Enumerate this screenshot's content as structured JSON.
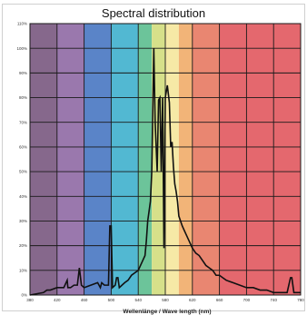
{
  "chart_data": {
    "type": "line",
    "title": "Spectral distribution",
    "xlabel": "Wellenlänge / Wave length (nm)",
    "ylabel": "",
    "xlim": [
      380,
      780
    ],
    "ylim": [
      0,
      110
    ],
    "x_ticks": [
      "380",
      "420",
      "460",
      "500",
      "540",
      "580",
      "620",
      "660",
      "700",
      "740",
      "780"
    ],
    "y_ticks": [
      "0%",
      "10%",
      "20%",
      "30%",
      "40%",
      "50%",
      "60%",
      "70%",
      "80%",
      "90%",
      "100%",
      "110%"
    ],
    "grid": true,
    "background_bands": [
      {
        "from": 380,
        "to": 420,
        "color": "#86688c"
      },
      {
        "from": 420,
        "to": 460,
        "color": "#9a78ad"
      },
      {
        "from": 460,
        "to": 500,
        "color": "#5a84c8"
      },
      {
        "from": 500,
        "to": 540,
        "color": "#52b8d2"
      },
      {
        "from": 540,
        "to": 560,
        "color": "#6cc49a"
      },
      {
        "from": 560,
        "to": 580,
        "color": "#d6e08a"
      },
      {
        "from": 580,
        "to": 600,
        "color": "#f6e9a6"
      },
      {
        "from": 600,
        "to": 620,
        "color": "#f2b478"
      },
      {
        "from": 620,
        "to": 660,
        "color": "#e98671"
      },
      {
        "from": 660,
        "to": 780,
        "color": "#e4686e"
      }
    ],
    "series": [
      {
        "color": "#111111",
        "points": [
          [
            380,
            0
          ],
          [
            390,
            0.5
          ],
          [
            400,
            1
          ],
          [
            405,
            2
          ],
          [
            410,
            2
          ],
          [
            420,
            3
          ],
          [
            430,
            3
          ],
          [
            435,
            6
          ],
          [
            436,
            3
          ],
          [
            440,
            3
          ],
          [
            445,
            4
          ],
          [
            450,
            4
          ],
          [
            453,
            11
          ],
          [
            456,
            4
          ],
          [
            460,
            3
          ],
          [
            470,
            4
          ],
          [
            480,
            5
          ],
          [
            484,
            3
          ],
          [
            486,
            5
          ],
          [
            490,
            4
          ],
          [
            496,
            4
          ],
          [
            498,
            28
          ],
          [
            500,
            28
          ],
          [
            502,
            3
          ],
          [
            506,
            4
          ],
          [
            508,
            7
          ],
          [
            510,
            7
          ],
          [
            512,
            3
          ],
          [
            516,
            4
          ],
          [
            520,
            5
          ],
          [
            525,
            6
          ],
          [
            530,
            8
          ],
          [
            535,
            9
          ],
          [
            540,
            10
          ],
          [
            545,
            13
          ],
          [
            550,
            16
          ],
          [
            552,
            22
          ],
          [
            554,
            30
          ],
          [
            556,
            34
          ],
          [
            558,
            38
          ],
          [
            560,
            50
          ],
          [
            563,
            100
          ],
          [
            565,
            70
          ],
          [
            568,
            50
          ],
          [
            570,
            79
          ],
          [
            572,
            80
          ],
          [
            574,
            50
          ],
          [
            576,
            80
          ],
          [
            578,
            19
          ],
          [
            580,
            80
          ],
          [
            583,
            85
          ],
          [
            586,
            78
          ],
          [
            588,
            60
          ],
          [
            590,
            62
          ],
          [
            592,
            52
          ],
          [
            594,
            45
          ],
          [
            596,
            42
          ],
          [
            598,
            38
          ],
          [
            600,
            32
          ],
          [
            605,
            28
          ],
          [
            610,
            25
          ],
          [
            615,
            22
          ],
          [
            620,
            19
          ],
          [
            625,
            17
          ],
          [
            630,
            16
          ],
          [
            635,
            14
          ],
          [
            640,
            12
          ],
          [
            645,
            11
          ],
          [
            650,
            10
          ],
          [
            655,
            8
          ],
          [
            660,
            8
          ],
          [
            665,
            7
          ],
          [
            670,
            6
          ],
          [
            680,
            5
          ],
          [
            690,
            4
          ],
          [
            700,
            3
          ],
          [
            710,
            3
          ],
          [
            720,
            2
          ],
          [
            730,
            2
          ],
          [
            740,
            1
          ],
          [
            750,
            1
          ],
          [
            760,
            1
          ],
          [
            765,
            7
          ],
          [
            767,
            7
          ],
          [
            770,
            1
          ],
          [
            780,
            1
          ]
        ]
      }
    ]
  }
}
